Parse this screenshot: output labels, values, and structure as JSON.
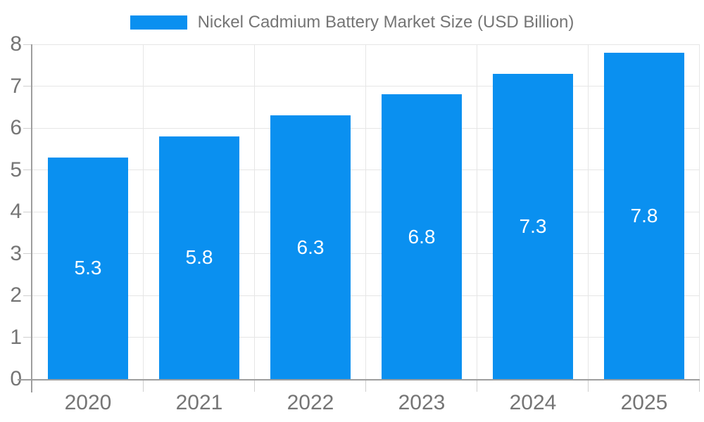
{
  "legend": {
    "label": "Nickel Cadmium Battery Market Size (USD Billion)"
  },
  "chart_data": {
    "type": "bar",
    "title": "Nickel Cadmium Battery Market Size (USD Billion)",
    "series_name": "Nickel Cadmium Battery Market Size (USD Billion)",
    "categories": [
      "2020",
      "2021",
      "2022",
      "2023",
      "2024",
      "2025"
    ],
    "values": [
      5.3,
      5.8,
      6.3,
      6.8,
      7.3,
      7.8
    ],
    "value_labels": [
      "5.3",
      "5.8",
      "6.3",
      "6.8",
      "7.3",
      "7.8"
    ],
    "xlabel": "",
    "ylabel": "",
    "ylim": [
      0,
      8
    ],
    "yticks": [
      0,
      1,
      2,
      3,
      4,
      5,
      6,
      7,
      8
    ],
    "grid": true,
    "legend_position": "top"
  },
  "colors": {
    "bar": "#0a90f0",
    "data_label": "#ffffff",
    "axis_text": "#757575",
    "axis_line": "#9e9e9e",
    "gridline": "#e6e6e6",
    "tick": "#cfcfcf",
    "background": "#ffffff"
  }
}
